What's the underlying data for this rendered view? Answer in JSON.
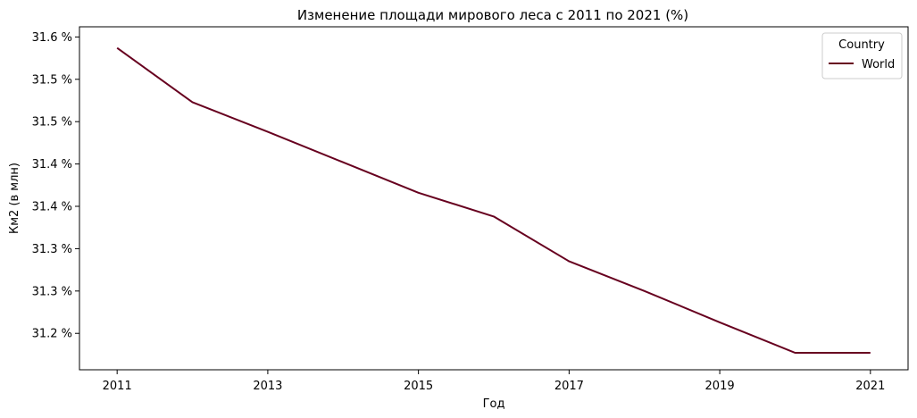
{
  "chart_data": {
    "type": "line",
    "title": "Изменение площади мирового леса с 2011 по 2021 (%)",
    "xlabel": "Год",
    "ylabel": "Км2 (в млн)",
    "x": [
      2011,
      2012,
      2013,
      2014,
      2015,
      2016,
      2017,
      2018,
      2019,
      2020,
      2021
    ],
    "x_ticks": [
      "2011",
      "2013",
      "2015",
      "2017",
      "2019",
      "2021"
    ],
    "x_tick_values": [
      2011,
      2013,
      2015,
      2017,
      2019,
      2021
    ],
    "y_ticks": [
      "31.2 %",
      "31.3 %",
      "31.3 %",
      "31.4 %",
      "31.4 %",
      "31.5 %",
      "31.5 %",
      "31.6 %"
    ],
    "y_tick_values": [
      31.2,
      31.25,
      31.3,
      31.35,
      31.4,
      31.45,
      31.5,
      31.55
    ],
    "ylim": [
      31.157,
      31.562
    ],
    "xlim": [
      2010.5,
      2021.5
    ],
    "series": [
      {
        "name": "World",
        "color": "#67001f",
        "values": [
          31.537,
          31.473,
          31.438,
          31.402,
          31.366,
          31.338,
          31.285,
          31.25,
          31.213,
          31.177,
          31.177
        ]
      }
    ],
    "legend": {
      "title": "Country",
      "position": "top-right"
    },
    "grid": false
  }
}
